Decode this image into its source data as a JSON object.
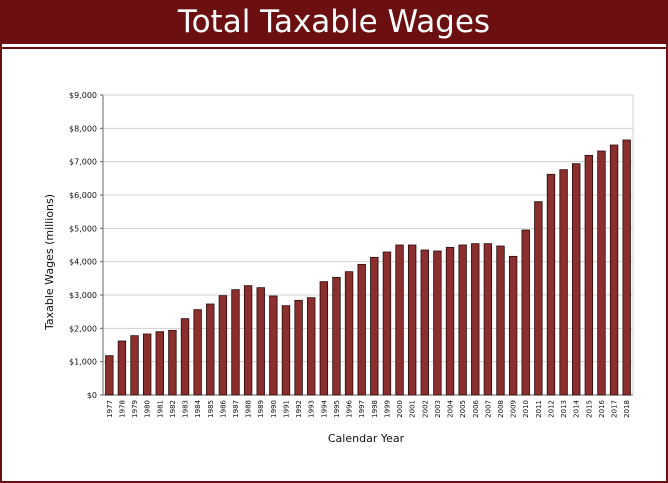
{
  "slide": {
    "title": "Total Taxable Wages"
  },
  "colors": {
    "header": "#6b0f10",
    "bar_fill": "#8b2e2e",
    "bar_stroke": "#2a0a0a",
    "grid": "#d0d0d0"
  },
  "chart_data": {
    "type": "bar",
    "xlabel": "Calendar Year",
    "ylabel": "Taxable Wages (millions)",
    "ylim": [
      0,
      9000
    ],
    "yticks": [
      0,
      1000,
      2000,
      3000,
      4000,
      5000,
      6000,
      7000,
      8000,
      9000
    ],
    "ytick_labels": [
      "$0",
      "$1,000",
      "$2,000",
      "$3,000",
      "$4,000",
      "$5,000",
      "$6,000",
      "$7,000",
      "$8,000",
      "$9,000"
    ],
    "grid": true,
    "categories": [
      "1977",
      "1978",
      "1979",
      "1980",
      "1981",
      "1982",
      "1983",
      "1984",
      "1985",
      "1986",
      "1987",
      "1988",
      "1989",
      "1990",
      "1991",
      "1992",
      "1993",
      "1994",
      "1995",
      "1996",
      "1997",
      "1998",
      "1999",
      "2000",
      "2001",
      "2002",
      "2003",
      "2004",
      "2005",
      "2006",
      "2007",
      "2008",
      "2009",
      "2010",
      "2011",
      "2012",
      "2013",
      "2014",
      "2015",
      "2016",
      "2017",
      "2018"
    ],
    "values": [
      1180,
      1620,
      1780,
      1830,
      1900,
      1940,
      2290,
      2560,
      2730,
      2980,
      3160,
      3280,
      3220,
      2970,
      2680,
      2840,
      2920,
      3400,
      3530,
      3700,
      3920,
      4130,
      4290,
      4500,
      4500,
      4350,
      4320,
      4430,
      4500,
      4540,
      4540,
      4470,
      4160,
      4950,
      5800,
      6620,
      6760,
      6940,
      7190,
      7320,
      7500,
      7650
    ]
  }
}
